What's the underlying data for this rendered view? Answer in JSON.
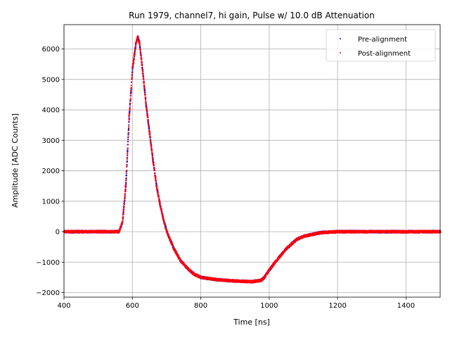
{
  "chart_data": {
    "type": "scatter",
    "title": "Run 1979, channel7, hi gain, Pulse w/ 10.0 dB Attenuation",
    "xlabel": "Time [ns]",
    "ylabel": "Amplitude [ADC Counts]",
    "xlim": [
      400,
      1500
    ],
    "ylim": [
      -2150,
      6800
    ],
    "xticks": [
      400,
      600,
      800,
      1000,
      1200,
      1400
    ],
    "yticks": [
      -2000,
      -1000,
      0,
      1000,
      2000,
      3000,
      4000,
      5000,
      6000
    ],
    "grid": true,
    "legend_position": "top-right",
    "series": [
      {
        "name": "Pre-alignment",
        "color": "#0000ff",
        "marker": "dot",
        "x": [
          400,
          500,
          560,
          570,
          580,
          590,
          600,
          610,
          615,
          620,
          630,
          640,
          650,
          660,
          670,
          680,
          690,
          700,
          720,
          740,
          760,
          780,
          800,
          850,
          900,
          950,
          975,
          985,
          1000,
          1020,
          1050,
          1080,
          1100,
          1150,
          1200,
          1300,
          1400,
          1500
        ],
        "y": [
          0,
          0,
          0,
          300,
          1500,
          3800,
          5400,
          6200,
          6400,
          6200,
          5200,
          4100,
          3200,
          2300,
          1500,
          900,
          400,
          0,
          -550,
          -950,
          -1200,
          -1400,
          -1500,
          -1580,
          -1620,
          -1640,
          -1600,
          -1500,
          -1250,
          -950,
          -550,
          -250,
          -150,
          -30,
          0,
          0,
          0,
          0
        ]
      },
      {
        "name": "Post-alignment",
        "color": "#ff0000",
        "marker": "dot",
        "x": [
          400,
          500,
          560,
          570,
          580,
          590,
          600,
          610,
          615,
          620,
          630,
          640,
          650,
          660,
          670,
          680,
          690,
          700,
          720,
          740,
          760,
          780,
          800,
          850,
          900,
          950,
          975,
          985,
          1000,
          1020,
          1050,
          1080,
          1100,
          1150,
          1200,
          1300,
          1400,
          1500
        ],
        "y": [
          0,
          0,
          0,
          300,
          1500,
          3800,
          5400,
          6200,
          6400,
          6200,
          5200,
          4100,
          3200,
          2300,
          1500,
          900,
          400,
          0,
          -550,
          -950,
          -1200,
          -1400,
          -1500,
          -1580,
          -1620,
          -1640,
          -1600,
          -1500,
          -1250,
          -950,
          -550,
          -250,
          -150,
          -30,
          0,
          0,
          0,
          0
        ]
      }
    ]
  }
}
